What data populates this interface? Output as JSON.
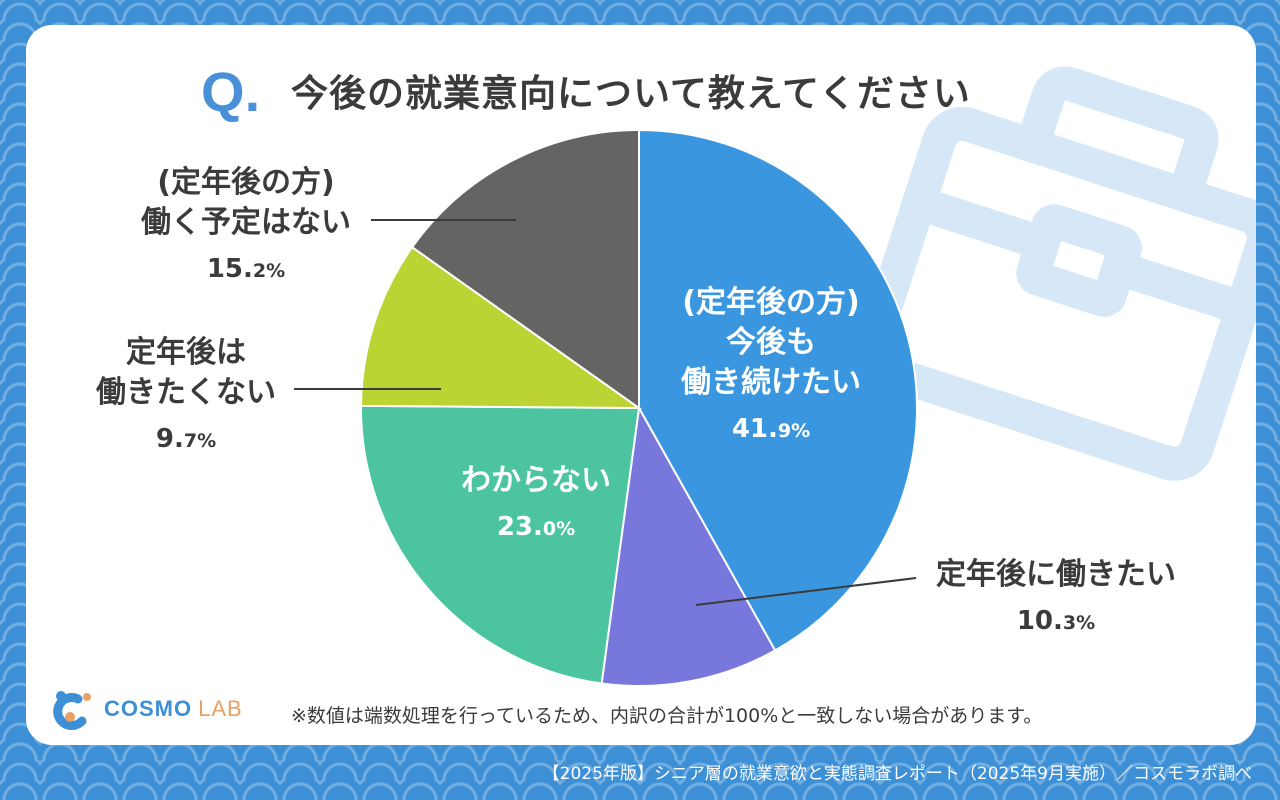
{
  "header": {
    "q_mark": "Q",
    "title": "今後の就業意向について教えてください"
  },
  "colors": {
    "background": "#3d8fd6",
    "accent": "#4a90d9",
    "text": "#3b3b3b",
    "bag_decoration": "#d6e8f7"
  },
  "chart_data": {
    "type": "pie",
    "unit": "%",
    "start_angle_deg": 0,
    "direction": "clockwise",
    "slices": [
      {
        "label_lines": [
          "(定年後の方)",
          "今後も",
          "働き続けたい"
        ],
        "value": 41.9,
        "pct_main": "41.",
        "pct_decimal": "9%",
        "color": "#3a97df",
        "label_style": "inside"
      },
      {
        "label_lines": [
          "定年後に働きたい"
        ],
        "value": 10.3,
        "pct_main": "10.",
        "pct_decimal": "3%",
        "color": "#7878dc",
        "label_style": "outside"
      },
      {
        "label_lines": [
          "わからない"
        ],
        "value": 23.0,
        "pct_main": "23.",
        "pct_decimal": "0%",
        "color": "#4cc4a0",
        "label_style": "inside"
      },
      {
        "label_lines": [
          "定年後は",
          "働きたくない"
        ],
        "value": 9.7,
        "pct_main": "9.",
        "pct_decimal": "7%",
        "color": "#bcd433",
        "label_style": "outside"
      },
      {
        "label_lines": [
          "(定年後の方)",
          "働く予定はない"
        ],
        "value": 15.2,
        "pct_main": "15.",
        "pct_decimal": "2%",
        "color": "#666463",
        "label_style": "outside"
      }
    ]
  },
  "logo": {
    "name": "COSMO",
    "suffix": "LAB",
    "icon": "cosmo-lab-logo-icon"
  },
  "footnote": "※数値は端数処理を行っているため、内訳の合計が100%と一致しない場合があります。",
  "credit": "【2025年版】シニア層の就業意欲と実態調査レポート（2025年9月実施）／コスモラボ調べ"
}
